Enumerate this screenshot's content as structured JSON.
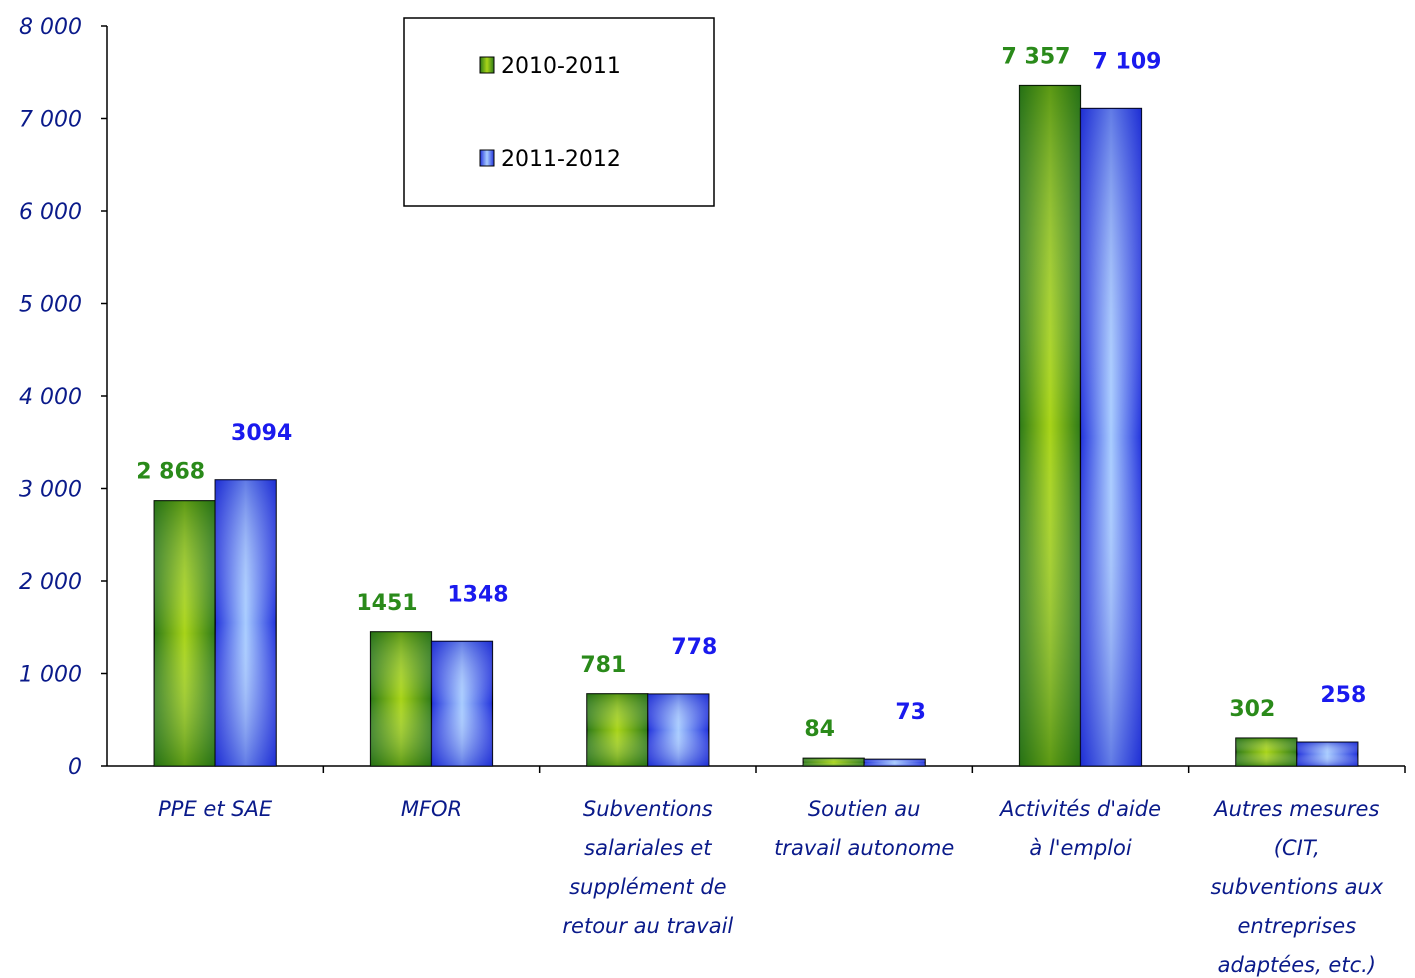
{
  "chart_data": {
    "type": "bar",
    "categories": [
      [
        "PPE et SAE"
      ],
      [
        "MFOR"
      ],
      [
        "Subventions",
        "salariales et",
        "supplément de",
        "retour au travail"
      ],
      [
        "Soutien au",
        "travail autonome"
      ],
      [
        "Activités d'aide",
        "à l'emploi"
      ],
      [
        "Autres mesures",
        "(CIT,",
        "subventions aux",
        "entreprises",
        "adaptées, etc.)"
      ]
    ],
    "series": [
      {
        "name": "2010-2011",
        "color": "#3a8a10",
        "label_color": "#2a8a1a",
        "values": [
          2868,
          1451,
          781,
          84,
          7357,
          302
        ],
        "labels": [
          "2 868",
          "1451",
          "781",
          "84",
          "7 357",
          "302"
        ]
      },
      {
        "name": "2011-2012",
        "color": "#3355ee",
        "label_color": "#1a1aee",
        "values": [
          3094,
          1348,
          778,
          73,
          7109,
          258
        ],
        "labels": [
          "3094",
          "1348",
          "778",
          "73",
          "7 109",
          "258"
        ]
      }
    ],
    "yticks": [
      "0",
      "1 000",
      "2 000",
      "3 000",
      "4 000",
      "5 000",
      "6 000",
      "7 000",
      "8 000"
    ],
    "ylim": [
      0,
      8000
    ],
    "legend_position": "top-center"
  }
}
